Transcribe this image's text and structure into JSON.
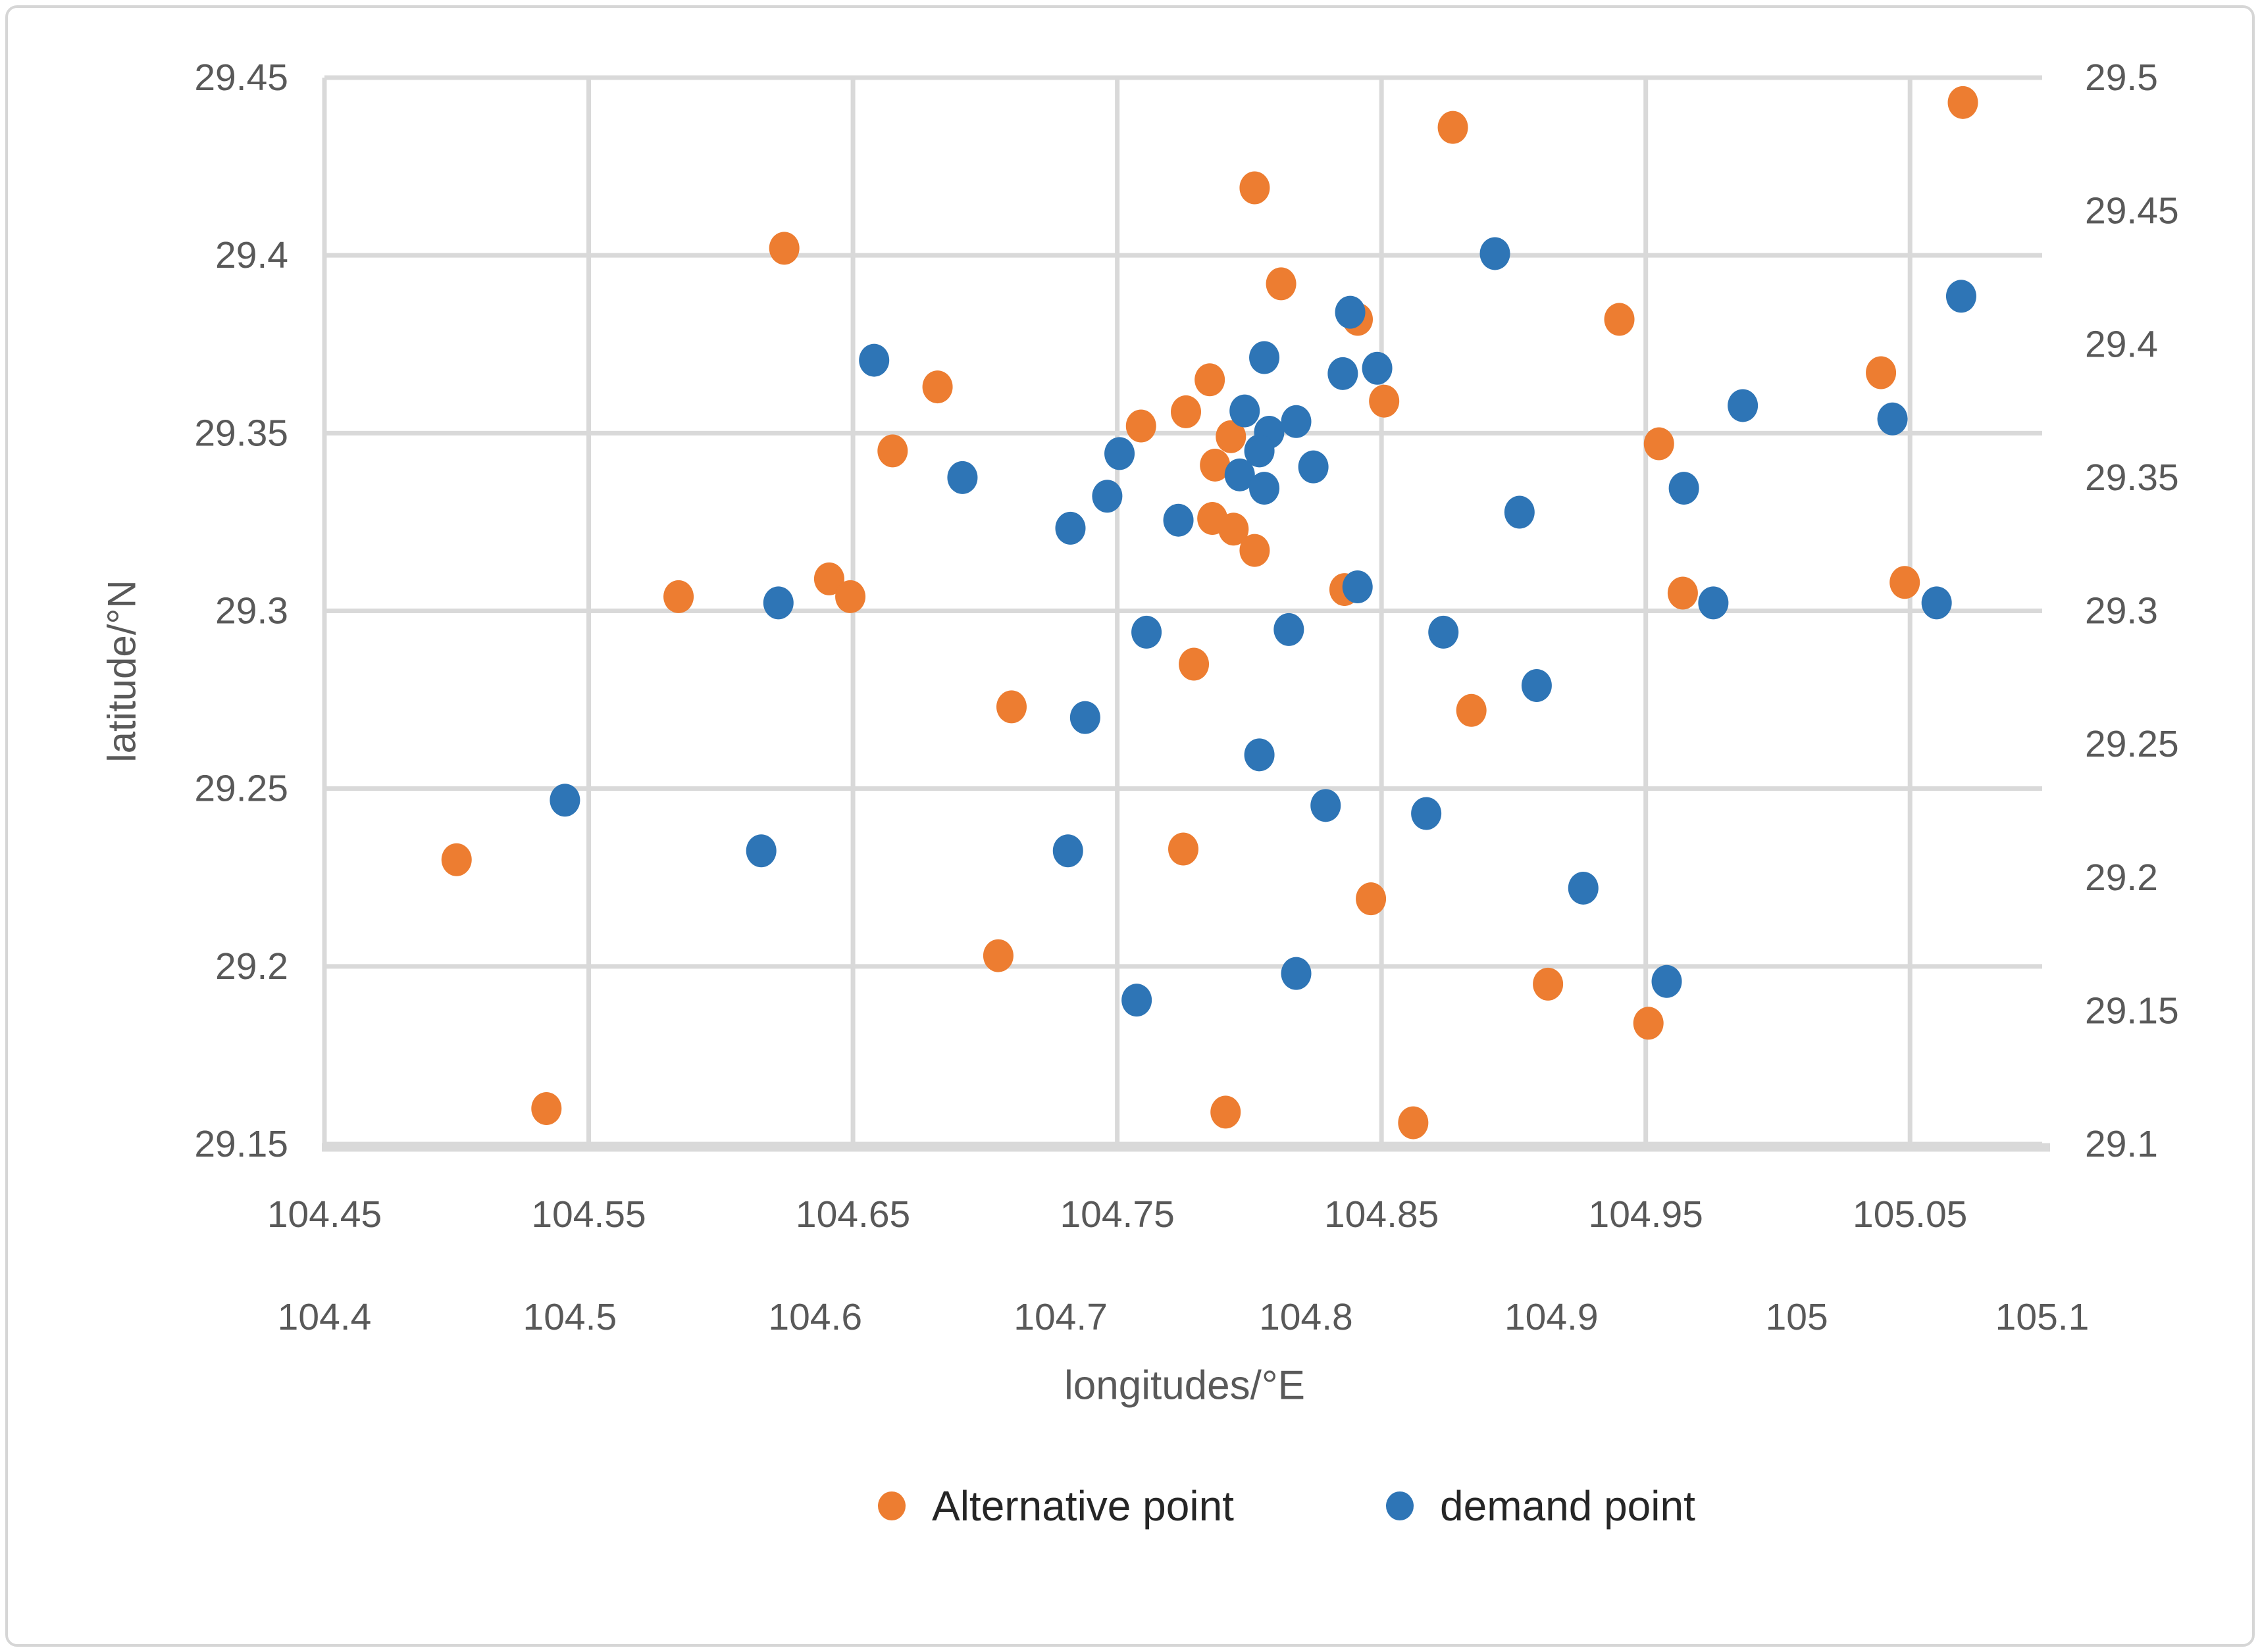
{
  "chart_data": {
    "type": "scatter",
    "title": "",
    "xlabel": "longitudes/°E",
    "ylabel": "latitude/°N",
    "grid": "on",
    "legend_position": "bottom",
    "colors": {
      "grid": "#d9d9d9",
      "tick_text": "#595959",
      "legend_text": "#262626"
    },
    "axes": {
      "primary_x": {
        "min": 104.45,
        "max": 105.1
      },
      "primary_y": {
        "min": 29.15,
        "max": 29.45
      },
      "secondary_x": {
        "min": 104.4,
        "max": 105.1
      },
      "secondary_y": {
        "min": 29.1,
        "max": 29.5
      }
    },
    "ticks": {
      "left": [
        {
          "label": "29.45",
          "value": 29.45
        },
        {
          "label": "29.4",
          "value": 29.4
        },
        {
          "label": "29.35",
          "value": 29.35
        },
        {
          "label": "29.3",
          "value": 29.3
        },
        {
          "label": "29.25",
          "value": 29.25
        },
        {
          "label": "29.2",
          "value": 29.2
        },
        {
          "label": "29.15",
          "value": 29.15
        }
      ],
      "right": [
        {
          "label": "29.5",
          "value": 29.5
        },
        {
          "label": "29.45",
          "value": 29.45
        },
        {
          "label": "29.4",
          "value": 29.4
        },
        {
          "label": "29.35",
          "value": 29.35
        },
        {
          "label": "29.3",
          "value": 29.3
        },
        {
          "label": "29.25",
          "value": 29.25
        },
        {
          "label": "29.2",
          "value": 29.2
        },
        {
          "label": "29.15",
          "value": 29.15
        },
        {
          "label": "29.1",
          "value": 29.1
        }
      ],
      "bottom_primary": [
        {
          "label": "104.45",
          "value": 104.45
        },
        {
          "label": "104.55",
          "value": 104.55
        },
        {
          "label": "104.65",
          "value": 104.65
        },
        {
          "label": "104.75",
          "value": 104.75
        },
        {
          "label": "104.85",
          "value": 104.85
        },
        {
          "label": "104.95",
          "value": 104.95
        },
        {
          "label": "105.05",
          "value": 105.05
        }
      ],
      "bottom_secondary": [
        {
          "label": "104.4",
          "value": 104.4
        },
        {
          "label": "104.5",
          "value": 104.5
        },
        {
          "label": "104.6",
          "value": 104.6
        },
        {
          "label": "104.7",
          "value": 104.7
        },
        {
          "label": "104.8",
          "value": 104.8
        },
        {
          "label": "104.9",
          "value": 104.9
        },
        {
          "label": "105",
          "value": 105.0
        },
        {
          "label": "105.1",
          "value": 105.1
        }
      ]
    },
    "series": [
      {
        "name": "Alternative point",
        "color": "#ED7D31",
        "axis": "primary",
        "points": [
          [
            104.624,
            29.402
          ],
          [
            104.802,
            29.419
          ],
          [
            104.877,
            29.436
          ],
          [
            105.07,
            29.443
          ],
          [
            104.812,
            29.392
          ],
          [
            104.841,
            29.382
          ],
          [
            104.94,
            29.382
          ],
          [
            105.039,
            29.367
          ],
          [
            104.851,
            29.359
          ],
          [
            104.785,
            29.365
          ],
          [
            104.759,
            29.352
          ],
          [
            104.776,
            29.356
          ],
          [
            104.793,
            29.349
          ],
          [
            104.787,
            29.341
          ],
          [
            104.786,
            29.326
          ],
          [
            104.794,
            29.323
          ],
          [
            104.802,
            29.317
          ],
          [
            104.665,
            29.345
          ],
          [
            104.682,
            29.363
          ],
          [
            104.71,
            29.273
          ],
          [
            104.584,
            29.304
          ],
          [
            104.641,
            29.309
          ],
          [
            104.649,
            29.304
          ],
          [
            104.5,
            29.23
          ],
          [
            104.534,
            29.16
          ],
          [
            104.779,
            29.285
          ],
          [
            104.836,
            29.306
          ],
          [
            104.964,
            29.305
          ],
          [
            105.048,
            29.308
          ],
          [
            104.884,
            29.272
          ],
          [
            104.955,
            29.347
          ],
          [
            104.775,
            29.233
          ],
          [
            104.846,
            29.219
          ],
          [
            104.705,
            29.203
          ],
          [
            104.791,
            29.159
          ],
          [
            104.862,
            29.156
          ],
          [
            104.913,
            29.195
          ],
          [
            104.951,
            29.184
          ]
        ]
      },
      {
        "name": "demand point",
        "color": "#2E75B6",
        "axis": "secondary",
        "points": [
          [
            104.624,
            29.394
          ],
          [
            104.877,
            29.434
          ],
          [
            105.067,
            29.418
          ],
          [
            104.818,
            29.412
          ],
          [
            104.783,
            29.395
          ],
          [
            104.815,
            29.389
          ],
          [
            104.829,
            29.391
          ],
          [
            104.775,
            29.375
          ],
          [
            104.785,
            29.367
          ],
          [
            104.796,
            29.371
          ],
          [
            104.781,
            29.36
          ],
          [
            104.773,
            29.351
          ],
          [
            104.783,
            29.346
          ],
          [
            104.803,
            29.354
          ],
          [
            104.724,
            29.359
          ],
          [
            104.719,
            29.343
          ],
          [
            104.704,
            29.331
          ],
          [
            104.66,
            29.35
          ],
          [
            104.748,
            29.334
          ],
          [
            104.735,
            29.292
          ],
          [
            104.71,
            29.26
          ],
          [
            104.793,
            29.293
          ],
          [
            104.821,
            29.309
          ],
          [
            104.856,
            29.292
          ],
          [
            104.887,
            29.337
          ],
          [
            104.954,
            29.346
          ],
          [
            104.978,
            29.377
          ],
          [
            105.039,
            29.372
          ],
          [
            104.966,
            29.303
          ],
          [
            105.057,
            29.303
          ],
          [
            104.894,
            29.272
          ],
          [
            104.781,
            29.246
          ],
          [
            104.808,
            29.227
          ],
          [
            104.498,
            29.229
          ],
          [
            104.585,
            29.303
          ],
          [
            104.578,
            29.21
          ],
          [
            104.703,
            29.21
          ],
          [
            104.731,
            29.154
          ],
          [
            104.796,
            29.164
          ],
          [
            104.849,
            29.224
          ],
          [
            104.913,
            29.196
          ],
          [
            104.947,
            29.161
          ]
        ]
      }
    ]
  },
  "legend": {
    "items": [
      {
        "label": "Alternative point"
      },
      {
        "label": "demand point"
      }
    ]
  }
}
